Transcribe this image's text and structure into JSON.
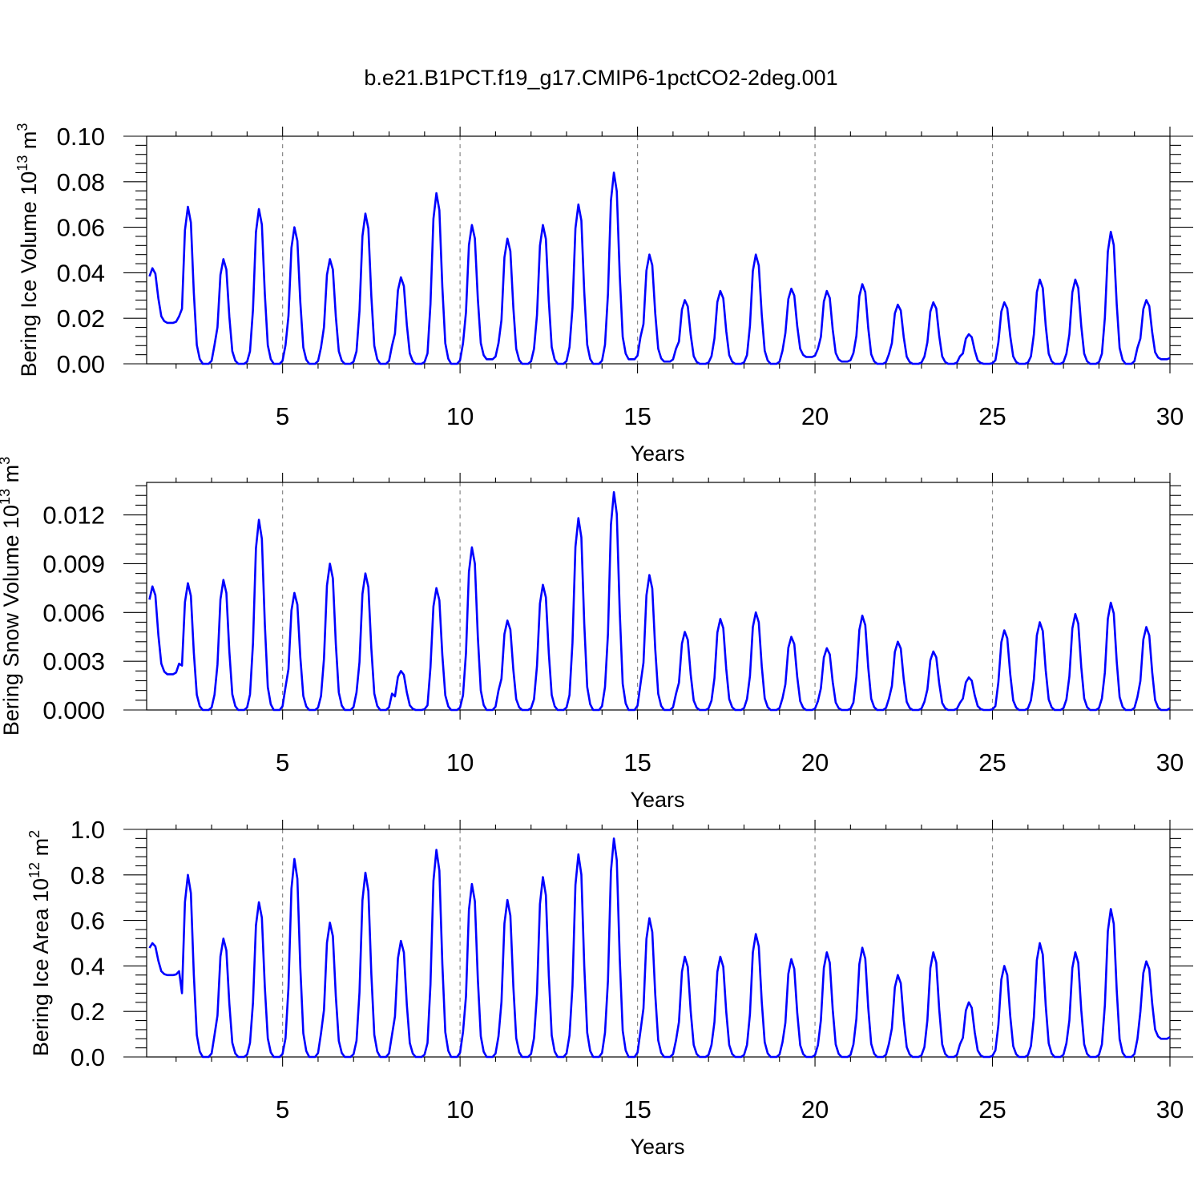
{
  "figure": {
    "title": "b.e21.B1PCT.f19_g17.CMIP6-1pctCO2-2deg.001"
  },
  "colors": {
    "series": "#0000ff",
    "grid": "#888888"
  },
  "chart_data": [
    {
      "type": "line",
      "ylabel": "Bering Ice Volume 10^13 m^3",
      "ylabel_main": "Bering Ice Volume 10",
      "ylabel_exp": "13",
      "ylabel_unit": " m",
      "ylabel_unit_exp": "3",
      "xlabel": "Years",
      "xlim": [
        1.17,
        30
      ],
      "ylim": [
        0,
        0.1
      ],
      "xticks": [
        5,
        10,
        15,
        20,
        25,
        30
      ],
      "xtick_labels": [
        "5",
        "10",
        "15",
        "20",
        "25",
        "30"
      ],
      "yticks": [
        0,
        0.02,
        0.04,
        0.06,
        0.08,
        0.1
      ],
      "ytick_labels": [
        "0.00",
        "0.02",
        "0.04",
        "0.06",
        "0.08",
        "0.10"
      ],
      "grid_x": [
        5,
        10,
        15,
        20,
        25
      ],
      "annual_cycles": {
        "start_year": 1,
        "peaks": [
          0.042,
          0.069,
          0.046,
          0.068,
          0.06,
          0.046,
          0.066,
          0.038,
          0.075,
          0.061,
          0.055,
          0.061,
          0.07,
          0.084,
          0.048,
          0.028,
          0.032,
          0.048,
          0.033,
          0.032,
          0.035,
          0.026,
          0.027,
          0.013,
          0.027,
          0.037,
          0.037,
          0.058,
          0.028
        ],
        "troughs": [
          0.018,
          0.0,
          0.0,
          0.0,
          0.0,
          0.0,
          0.0,
          0.0,
          0.0,
          0.002,
          0.0,
          0.0,
          0.0,
          0.002,
          0.001,
          0.0,
          0.0,
          0.0,
          0.003,
          0.001,
          0.0,
          0.0,
          0.0,
          0.0,
          0.0,
          0.0,
          0.0,
          0.0,
          0.002
        ]
      }
    },
    {
      "type": "line",
      "ylabel": "Bering Snow Volume 10^13 m^3",
      "ylabel_main": "Bering Snow Volume 10",
      "ylabel_exp": "13",
      "ylabel_unit": " m",
      "ylabel_unit_exp": "3",
      "xlabel": "Years",
      "xlim": [
        1.17,
        30
      ],
      "ylim": [
        0,
        0.014
      ],
      "xticks": [
        5,
        10,
        15,
        20,
        25,
        30
      ],
      "xtick_labels": [
        "5",
        "10",
        "15",
        "20",
        "25",
        "30"
      ],
      "yticks": [
        0,
        0.003,
        0.006,
        0.009,
        0.012
      ],
      "ytick_labels": [
        "0.000",
        "0.003",
        "0.006",
        "0.009",
        "0.012"
      ],
      "grid_x": [
        5,
        10,
        15,
        20,
        25
      ],
      "annual_cycles": {
        "start_year": 1,
        "peaks": [
          0.0076,
          0.0078,
          0.008,
          0.0117,
          0.0072,
          0.009,
          0.0084,
          0.0024,
          0.0075,
          0.01,
          0.0055,
          0.0077,
          0.0118,
          0.0134,
          0.0083,
          0.0048,
          0.0056,
          0.006,
          0.0045,
          0.0038,
          0.0058,
          0.0042,
          0.0036,
          0.002,
          0.0049,
          0.0054,
          0.0059,
          0.0066,
          0.0051
        ],
        "troughs": [
          0.0022,
          0.0,
          0.0,
          0.0,
          0.0,
          0.0,
          0.0,
          0.0,
          0.0,
          0.0,
          0.0,
          0.0,
          0.0,
          0.0,
          0.0,
          0.0,
          0.0,
          0.0,
          0.0,
          0.0,
          0.0,
          0.0,
          0.0,
          0.0,
          0.0,
          0.0,
          0.0,
          0.0,
          0.0
        ]
      }
    },
    {
      "type": "line",
      "ylabel": "Bering Ice Area 10^12 m^2",
      "ylabel_main": "Bering Ice Area 10",
      "ylabel_exp": "12",
      "ylabel_unit": " m",
      "ylabel_unit_exp": "2",
      "xlabel": "Years",
      "xlim": [
        1.17,
        30
      ],
      "ylim": [
        0,
        1.0
      ],
      "xticks": [
        5,
        10,
        15,
        20,
        25,
        30
      ],
      "xtick_labels": [
        "5",
        "10",
        "15",
        "20",
        "25",
        "30"
      ],
      "yticks": [
        0,
        0.2,
        0.4,
        0.6,
        0.8,
        1.0
      ],
      "ytick_labels": [
        "0.0",
        "0.2",
        "0.4",
        "0.6",
        "0.8",
        "1.0"
      ],
      "grid_x": [
        5,
        10,
        15,
        20,
        25
      ],
      "annual_cycles": {
        "start_year": 1,
        "peaks": [
          0.5,
          0.8,
          0.52,
          0.68,
          0.87,
          0.59,
          0.81,
          0.51,
          0.91,
          0.76,
          0.69,
          0.79,
          0.89,
          0.96,
          0.61,
          0.44,
          0.44,
          0.54,
          0.43,
          0.46,
          0.48,
          0.36,
          0.46,
          0.24,
          0.4,
          0.5,
          0.46,
          0.65,
          0.42
        ],
        "troughs": [
          0.36,
          0.0,
          0.0,
          0.0,
          0.0,
          0.0,
          0.0,
          0.0,
          0.0,
          0.0,
          0.0,
          0.0,
          0.0,
          0.0,
          0.0,
          0.0,
          0.0,
          0.0,
          0.0,
          0.0,
          0.0,
          0.0,
          0.0,
          0.0,
          0.0,
          0.0,
          0.0,
          0.0,
          0.08
        ]
      }
    }
  ]
}
